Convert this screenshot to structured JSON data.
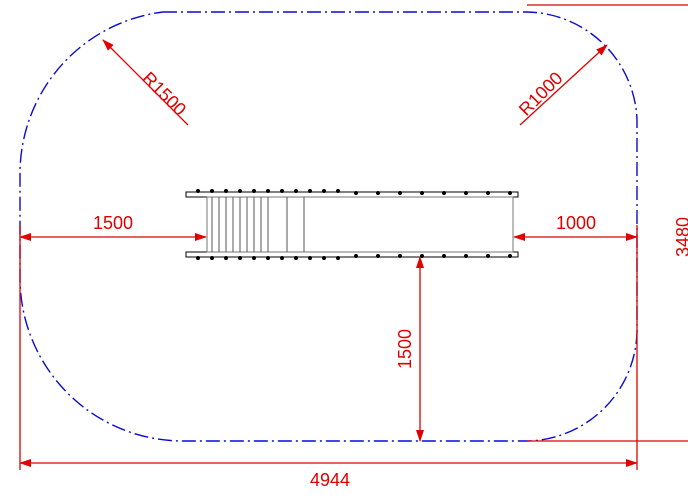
{
  "drawing": {
    "dimensions": {
      "left_clearance": "1500",
      "right_clearance": "1000",
      "front_clearance": "1500",
      "overall_width": "4944",
      "overall_depth": "3480",
      "radius_left": "R1500",
      "radius_right": "R1000"
    }
  },
  "colors": {
    "boundary": "#0a0ad0",
    "dimension": "#e00000",
    "equipment": "#000000"
  }
}
